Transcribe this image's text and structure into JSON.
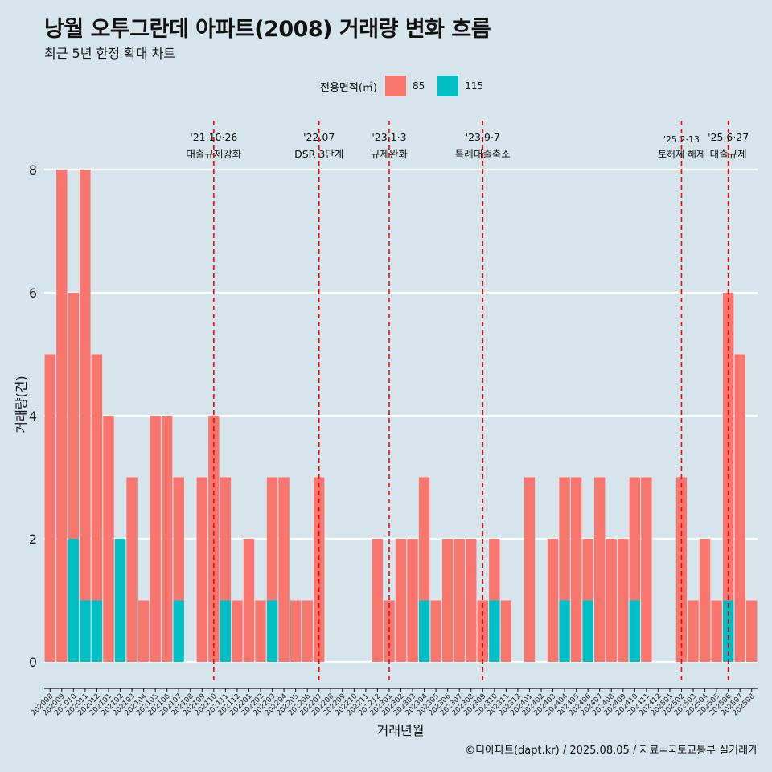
{
  "title": "낭월 오투그란데 아파트(2008) 거래량 변화 흐름",
  "subtitle": "최근 5년 한정 확대 차트",
  "caption": "©디아파트(dapt.kr) / 2025.08.05 / 자료=국토교통부 실거래가",
  "colors": {
    "background": "#d6e4ec",
    "area85": "#f8766d",
    "area115": "#00bfc4",
    "vline": "#ff0000",
    "grid": "#ffffff"
  },
  "chart_data": {
    "type": "bar",
    "stacked": true,
    "xlabel": "거래년월",
    "ylabel": "거래량(건)",
    "ylim": [
      0,
      8
    ],
    "yticks": [
      0,
      2,
      4,
      6,
      8
    ],
    "grid": "horizontal",
    "legend": {
      "title": "전용면적(㎡)",
      "position": "top"
    },
    "categories": [
      "202008",
      "202009",
      "202010",
      "202011",
      "202012",
      "202101",
      "202102",
      "202103",
      "202104",
      "202105",
      "202106",
      "202107",
      "202108",
      "202109",
      "202110",
      "202111",
      "202112",
      "202201",
      "202202",
      "202203",
      "202204",
      "202205",
      "202206",
      "202207",
      "202208",
      "202209",
      "202210",
      "202211",
      "202212",
      "202301",
      "202302",
      "202303",
      "202304",
      "202305",
      "202306",
      "202307",
      "202308",
      "202309",
      "202310",
      "202311",
      "202312",
      "202401",
      "202402",
      "202403",
      "202404",
      "202405",
      "202406",
      "202407",
      "202408",
      "202409",
      "202410",
      "202411",
      "202412",
      "202501",
      "202502",
      "202503",
      "202504",
      "202505",
      "202506",
      "202507",
      "202508"
    ],
    "series": [
      {
        "name": "85",
        "values": [
          5,
          8,
          4,
          7,
          4,
          4,
          0,
          3,
          1,
          4,
          4,
          2,
          0,
          3,
          4,
          2,
          1,
          2,
          1,
          2,
          3,
          1,
          1,
          3,
          0,
          0,
          0,
          0,
          2,
          1,
          2,
          2,
          2,
          1,
          2,
          2,
          2,
          1,
          1,
          1,
          0,
          3,
          0,
          2,
          2,
          3,
          1,
          3,
          2,
          2,
          2,
          3,
          0,
          0,
          3,
          1,
          2,
          1,
          5,
          5,
          1
        ]
      },
      {
        "name": "115",
        "values": [
          0,
          0,
          2,
          1,
          1,
          0,
          2,
          0,
          0,
          0,
          0,
          1,
          0,
          0,
          0,
          1,
          0,
          0,
          0,
          1,
          0,
          0,
          0,
          0,
          0,
          0,
          0,
          0,
          0,
          0,
          0,
          0,
          1,
          0,
          0,
          0,
          0,
          0,
          1,
          0,
          0,
          0,
          0,
          0,
          1,
          0,
          1,
          0,
          0,
          0,
          1,
          0,
          0,
          0,
          0,
          0,
          0,
          0,
          1,
          0,
          0
        ]
      }
    ],
    "annotations": [
      {
        "date": "'21.10·26",
        "label": "대출규제강화",
        "x": "202110"
      },
      {
        "date": "'22.07",
        "label": "DSR 3단계",
        "x": "202207"
      },
      {
        "date": "'23.1·3",
        "label": "규제완화",
        "x": "202301"
      },
      {
        "date": "'23.9·7",
        "label": "특례대출축소",
        "x": "202309"
      },
      {
        "date": "'25.2·13",
        "label": "토허제 해제",
        "x": "202502"
      },
      {
        "date": "'25.6·27",
        "label": "대출규제",
        "x": "202506"
      }
    ]
  }
}
